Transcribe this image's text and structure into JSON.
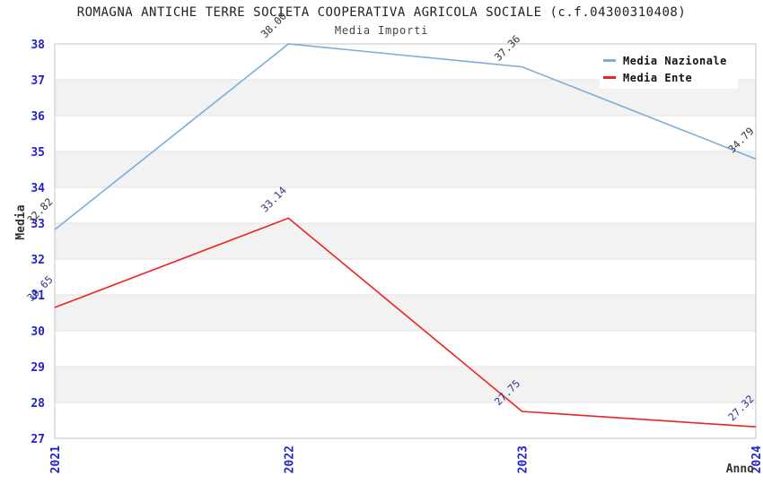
{
  "chart_data": {
    "type": "line",
    "title": "ROMAGNA ANTICHE TERRE SOCIETA COOPERATIVA AGRICOLA SOCIALE (c.f.04300310408)",
    "subtitle": "Media Importi",
    "xlabel": "Anno",
    "ylabel": "Media",
    "x_categories": [
      "2021",
      "2022",
      "2023",
      "2024"
    ],
    "series": [
      {
        "name": "Media Nazionale",
        "color": "#79aedd",
        "value_label_color": "#333333",
        "values": [
          32.82,
          38.0,
          37.36,
          34.79
        ]
      },
      {
        "name": "Media Ente",
        "color": "#ee2222",
        "value_label_color": "#333388",
        "values": [
          30.65,
          33.14,
          27.75,
          27.32
        ]
      }
    ],
    "ylim": [
      27,
      38
    ],
    "ytick_step": 1,
    "grid": true,
    "legend_position": "top-right",
    "band_colors": [
      "#ffffff",
      "#f2f2f2"
    ],
    "gridline_color": "#e2e2e2",
    "plot_border_color": "#c4c4c4",
    "tick_label_color": "#2222cc",
    "value_label_decimals": 2
  }
}
